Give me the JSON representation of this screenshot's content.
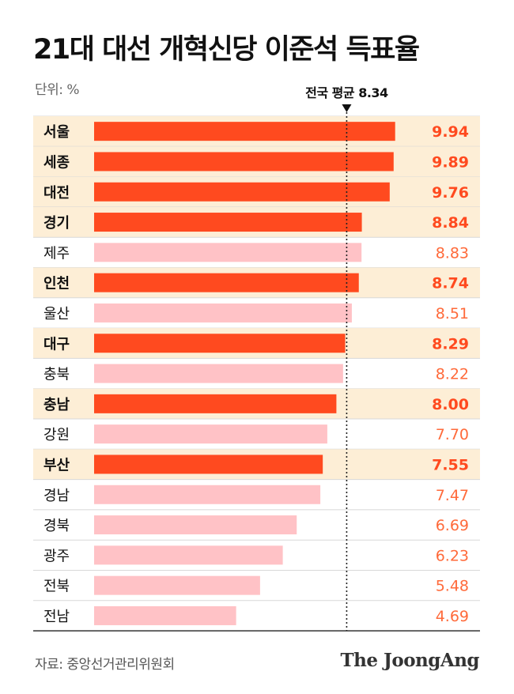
{
  "title": "21대 대선 개혁신당 이준석 득표율",
  "unit_label": "단위: %",
  "source": "자료: 중앙선거관리위원회",
  "brand": "The JoongAng",
  "colors": {
    "highlight_bar": "#ff4a1f",
    "normal_bar": "#ffc2c6",
    "highlight_row_bg": "#fdeed6",
    "highlight_value": "#ff4a1f",
    "normal_value": "#ff6a3a",
    "divider": "#d8d8d8",
    "text": "#111111"
  },
  "chart_data": {
    "type": "bar",
    "orientation": "horizontal",
    "title": "21대 대선 개혁신당 이준석 득표율",
    "unit": "%",
    "categories": [
      "서울",
      "세종",
      "대전",
      "경기",
      "제주",
      "인천",
      "울산",
      "대구",
      "충북",
      "충남",
      "강원",
      "부산",
      "경남",
      "경북",
      "광주",
      "전북",
      "전남"
    ],
    "values": [
      9.94,
      9.89,
      9.76,
      8.84,
      8.83,
      8.74,
      8.51,
      8.29,
      8.22,
      8.0,
      7.7,
      7.55,
      7.47,
      6.69,
      6.23,
      5.48,
      4.69
    ],
    "value_labels": [
      "9.94",
      "9.89",
      "9.76",
      "8.84",
      "8.83",
      "8.74",
      "8.51",
      "8.29",
      "8.22",
      "8.00",
      "7.70",
      "7.55",
      "7.47",
      "6.69",
      "6.23",
      "5.48",
      "4.69"
    ],
    "highlighted": [
      true,
      true,
      true,
      true,
      false,
      true,
      false,
      true,
      false,
      true,
      false,
      true,
      false,
      false,
      false,
      false,
      false
    ],
    "reference_line": {
      "label": "전국 평균 8.34",
      "value": 8.34
    },
    "xlim": [
      0,
      10.0
    ]
  }
}
